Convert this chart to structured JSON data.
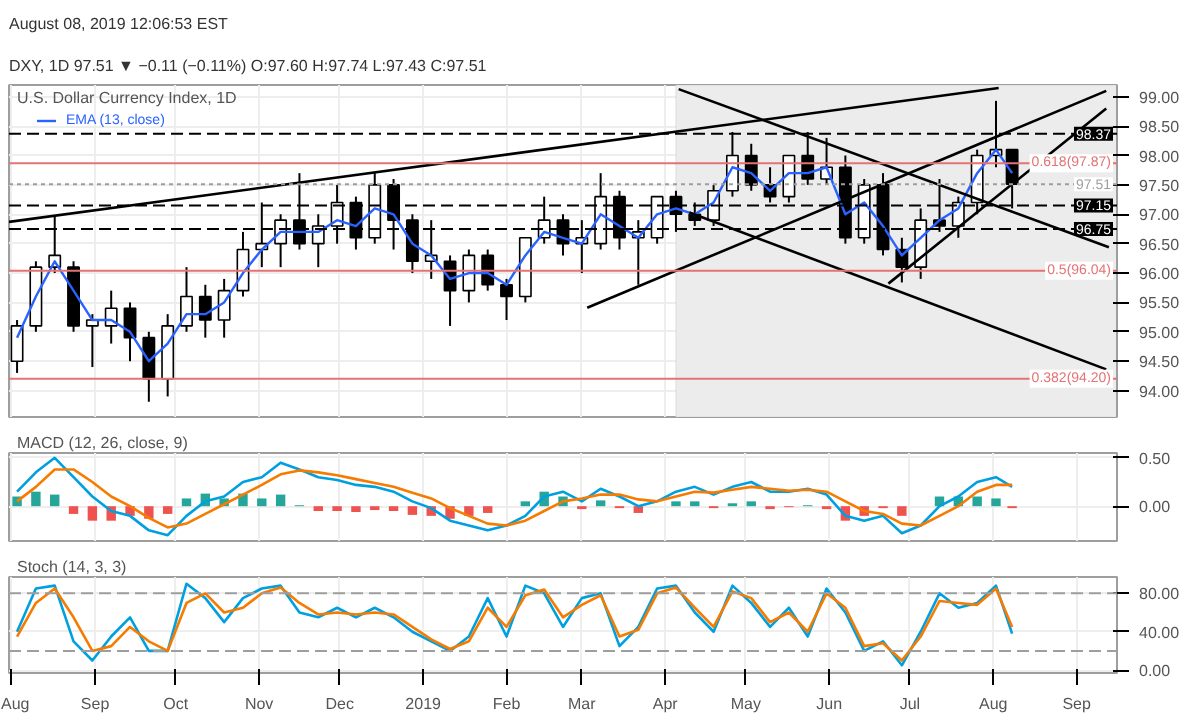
{
  "chart_data": [
    {
      "type": "candlestick",
      "title": "U.S. Dollar Currency Index, 1D",
      "annotations": [
        "August 08, 2019 12:06:53 EST",
        "DXY, 1D 97.51 ▼ −0.11 (−0.11%) O:97.60 H:97.74 L:97.43 C:97.51"
      ],
      "x": [
        "2018-08-03",
        "2018-08-10",
        "2018-08-17",
        "2018-08-24",
        "2018-08-31",
        "2018-09-07",
        "2018-09-14",
        "2018-09-21",
        "2018-09-28",
        "2018-10-05",
        "2018-10-12",
        "2018-10-19",
        "2018-10-26",
        "2018-11-02",
        "2018-11-09",
        "2018-11-16",
        "2018-11-23",
        "2018-11-30",
        "2018-12-07",
        "2018-12-14",
        "2018-12-21",
        "2018-12-28",
        "2019-01-04",
        "2019-01-11",
        "2019-01-18",
        "2019-01-25",
        "2019-02-01",
        "2019-02-08",
        "2019-02-15",
        "2019-02-22",
        "2019-03-01",
        "2019-03-08",
        "2019-03-15",
        "2019-03-22",
        "2019-03-29",
        "2019-04-05",
        "2019-04-12",
        "2019-04-19",
        "2019-04-26",
        "2019-05-03",
        "2019-05-10",
        "2019-05-17",
        "2019-05-24",
        "2019-05-31",
        "2019-06-07",
        "2019-06-14",
        "2019-06-21",
        "2019-06-28",
        "2019-07-05",
        "2019-07-12",
        "2019-07-19",
        "2019-07-26",
        "2019-08-02",
        "2019-08-08"
      ],
      "ohlc": [
        [
          94.5,
          95.2,
          94.3,
          95.1
        ],
        [
          95.1,
          96.2,
          95.0,
          96.1
        ],
        [
          96.1,
          96.98,
          96.0,
          96.3
        ],
        [
          96.1,
          96.2,
          95.0,
          95.1
        ],
        [
          95.1,
          95.3,
          94.4,
          95.2
        ],
        [
          95.1,
          95.7,
          94.8,
          95.4
        ],
        [
          95.4,
          95.5,
          94.5,
          94.9
        ],
        [
          94.9,
          95.0,
          93.81,
          94.2
        ],
        [
          94.2,
          95.3,
          93.9,
          95.1
        ],
        [
          95.1,
          96.1,
          95.0,
          95.6
        ],
        [
          95.6,
          95.8,
          94.9,
          95.2
        ],
        [
          95.2,
          95.9,
          94.9,
          95.7
        ],
        [
          95.7,
          96.7,
          95.6,
          96.4
        ],
        [
          96.4,
          97.2,
          96.1,
          96.5
        ],
        [
          96.5,
          97.0,
          96.1,
          96.9
        ],
        [
          96.9,
          97.7,
          96.4,
          96.5
        ],
        [
          96.5,
          97.0,
          96.1,
          96.8
        ],
        [
          96.8,
          97.5,
          96.5,
          97.2
        ],
        [
          97.2,
          97.3,
          96.4,
          96.6
        ],
        [
          96.6,
          97.7,
          96.5,
          97.5
        ],
        [
          97.5,
          97.6,
          96.4,
          96.9
        ],
        [
          96.9,
          97.0,
          96.0,
          96.2
        ],
        [
          96.2,
          96.9,
          95.9,
          96.3
        ],
        [
          96.2,
          96.3,
          95.1,
          95.7
        ],
        [
          95.7,
          96.4,
          95.5,
          96.3
        ],
        [
          96.3,
          96.4,
          95.7,
          95.8
        ],
        [
          95.8,
          95.9,
          95.2,
          95.6
        ],
        [
          95.6,
          96.6,
          95.5,
          96.6
        ],
        [
          96.6,
          97.3,
          96.5,
          96.9
        ],
        [
          96.9,
          97.0,
          96.3,
          96.5
        ],
        [
          96.5,
          96.9,
          96.0,
          96.6
        ],
        [
          96.5,
          97.7,
          96.4,
          97.3
        ],
        [
          97.3,
          97.4,
          96.4,
          96.6
        ],
        [
          96.6,
          96.9,
          95.8,
          96.7
        ],
        [
          96.6,
          97.3,
          96.5,
          97.3
        ],
        [
          97.3,
          97.4,
          96.7,
          97.0
        ],
        [
          97.0,
          97.2,
          96.8,
          96.9
        ],
        [
          96.9,
          97.5,
          96.8,
          97.4
        ],
        [
          97.4,
          98.4,
          97.3,
          98.0
        ],
        [
          98.0,
          98.2,
          97.4,
          97.5
        ],
        [
          97.5,
          97.8,
          97.2,
          97.3
        ],
        [
          97.3,
          98.0,
          97.2,
          98.0
        ],
        [
          98.0,
          98.4,
          97.5,
          97.6
        ],
        [
          97.6,
          98.3,
          97.5,
          97.8
        ],
        [
          97.8,
          98.0,
          96.5,
          96.6
        ],
        [
          96.6,
          97.6,
          96.5,
          97.5
        ],
        [
          97.5,
          97.7,
          96.3,
          96.4
        ],
        [
          96.4,
          96.6,
          95.84,
          96.1
        ],
        [
          96.1,
          97.1,
          95.9,
          96.9
        ],
        [
          96.9,
          97.6,
          96.7,
          96.8
        ],
        [
          96.8,
          97.3,
          96.6,
          97.2
        ],
        [
          97.2,
          98.1,
          97.0,
          98.0
        ],
        [
          98.0,
          98.93,
          97.8,
          98.1
        ],
        [
          98.1,
          98.1,
          97.1,
          97.51
        ]
      ],
      "color": "#000000",
      "colors": [
        "#ffffff",
        "#ffffff",
        "#ffffff",
        "#000000",
        "#ffffff",
        "#ffffff",
        "#000000",
        "#000000",
        "#ffffff",
        "#ffffff",
        "#000000",
        "#ffffff",
        "#ffffff",
        "#ffffff",
        "#ffffff",
        "#000000",
        "#ffffff",
        "#ffffff",
        "#000000",
        "#ffffff",
        "#000000",
        "#000000",
        "#ffffff",
        "#000000",
        "#ffffff",
        "#000000",
        "#000000",
        "#ffffff",
        "#ffffff",
        "#000000",
        "#ffffff",
        "#ffffff",
        "#000000",
        "#ffffff",
        "#ffffff",
        "#000000",
        "#000000",
        "#ffffff",
        "#ffffff",
        "#000000",
        "#000000",
        "#ffffff",
        "#000000",
        "#ffffff",
        "#000000",
        "#ffffff",
        "#000000",
        "#000000",
        "#ffffff",
        "#000000",
        "#ffffff",
        "#ffffff",
        "#ffffff",
        "#000000"
      ],
      "series": [
        {
          "type": "line",
          "name": "EMA (13, close)",
          "color": "#2962ff",
          "values": [
            94.9,
            95.6,
            96.2,
            95.7,
            95.2,
            95.2,
            95.0,
            94.5,
            94.8,
            95.3,
            95.3,
            95.5,
            96.0,
            96.4,
            96.7,
            96.7,
            96.7,
            96.9,
            96.8,
            97.1,
            97.0,
            96.5,
            96.3,
            95.9,
            96.0,
            96.0,
            95.8,
            96.3,
            96.7,
            96.6,
            96.5,
            97.0,
            96.8,
            96.6,
            97.0,
            97.1,
            97.0,
            97.2,
            97.8,
            97.7,
            97.4,
            97.7,
            97.7,
            97.8,
            97.0,
            97.2,
            96.8,
            96.3,
            96.6,
            96.9,
            97.1,
            97.7,
            98.1,
            97.7
          ]
        },
        {
          "type": "line",
          "color": "#000000",
          "x": [
            "2018-07-31",
            "2019-08-03"
          ],
          "values": [
            96.87,
            99.15
          ]
        },
        {
          "type": "line",
          "color": "#000000",
          "x": [
            "2019-03-03",
            "2019-09-12"
          ],
          "values": [
            95.41,
            99.1
          ]
        },
        {
          "type": "line",
          "color": "#000000",
          "x": [
            "2019-04-06",
            "2019-09-13"
          ],
          "values": [
            99.13,
            96.44
          ]
        },
        {
          "type": "line",
          "color": "#000000",
          "x": [
            "2019-04-10",
            "2019-09-12"
          ],
          "values": [
            97.03,
            94.36
          ]
        },
        {
          "type": "line",
          "color": "#000000",
          "x": [
            "2019-06-23",
            "2019-09-12"
          ],
          "values": [
            95.82,
            98.8
          ]
        }
      ],
      "ref_lines": [
        {
          "axis": "y",
          "value": 98.37,
          "label": "98.37",
          "color": "#000000",
          "line_style": "dashed"
        },
        {
          "axis": "y",
          "value": 97.87,
          "label": "0.618(97.87)",
          "color": "#e57373",
          "line_style": "solid"
        },
        {
          "axis": "y",
          "value": 97.51,
          "label": "97.51",
          "color": "#9e9e9e",
          "line_style": "dotted"
        },
        {
          "axis": "y",
          "value": 97.15,
          "label": "97.15",
          "color": "#000000",
          "line_style": "dashed"
        },
        {
          "axis": "y",
          "value": 96.75,
          "label": "96.75",
          "color": "#000000",
          "line_style": "dashed"
        },
        {
          "axis": "y",
          "value": 96.04,
          "label": "0.5(96.04)",
          "color": "#e57373",
          "line_style": "solid"
        },
        {
          "axis": "y",
          "value": 94.2,
          "label": "0.382(94.20)",
          "color": "#e57373",
          "line_style": "solid"
        }
      ],
      "bands": [
        {
          "axis": "x",
          "from": "2019-04-05",
          "to": "2019-09-16",
          "color": "#ececec"
        }
      ],
      "xlim": [
        "2018-07-31",
        "2019-09-16"
      ],
      "xticks": [
        {
          "value": "2018-08-01",
          "label": null
        },
        {
          "value": "2018-09-01",
          "label": null
        },
        {
          "value": "2018-10-01",
          "label": null
        },
        {
          "value": "2018-11-01",
          "label": null
        },
        {
          "value": "2018-12-01",
          "label": null
        },
        {
          "value": "2019-01-01",
          "label": null
        },
        {
          "value": "2019-02-01",
          "label": null
        },
        {
          "value": "2019-03-01",
          "label": null
        },
        {
          "value": "2019-04-01",
          "label": null
        },
        {
          "value": "2019-05-01",
          "label": null
        },
        {
          "value": "2019-06-01",
          "label": null
        },
        {
          "value": "2019-07-01",
          "label": null
        },
        {
          "value": "2019-08-01",
          "label": null
        },
        {
          "value": "2019-09-01",
          "label": null
        }
      ],
      "ylim": [
        93.55,
        99.2
      ],
      "yticks": [
        {
          "value": 94,
          "label": "94.00"
        },
        {
          "value": 94.5,
          "label": "94.50"
        },
        {
          "value": 95,
          "label": "95.00"
        },
        {
          "value": 95.5,
          "label": "95.50"
        },
        {
          "value": 96,
          "label": "96.00"
        },
        {
          "value": 96.5,
          "label": "96.50"
        },
        {
          "value": 97,
          "label": "97.00"
        },
        {
          "value": 97.5,
          "label": "97.50"
        },
        {
          "value": 98,
          "label": "98.00"
        },
        {
          "value": 98.5,
          "label": "98.50"
        },
        {
          "value": 99,
          "label": "99.00"
        }
      ],
      "grid": true,
      "legend": "top left",
      "tick_labels": "y"
    },
    {
      "type": "line",
      "title": "MACD (12, 26, close, 9)",
      "x": [
        "2018-08-03",
        "2018-08-10",
        "2018-08-17",
        "2018-08-24",
        "2018-08-31",
        "2018-09-07",
        "2018-09-14",
        "2018-09-21",
        "2018-09-28",
        "2018-10-05",
        "2018-10-12",
        "2018-10-19",
        "2018-10-26",
        "2018-11-02",
        "2018-11-09",
        "2018-11-16",
        "2018-11-23",
        "2018-11-30",
        "2018-12-07",
        "2018-12-14",
        "2018-12-21",
        "2018-12-28",
        "2019-01-04",
        "2019-01-11",
        "2019-01-18",
        "2019-01-25",
        "2019-02-01",
        "2019-02-08",
        "2019-02-15",
        "2019-02-22",
        "2019-03-01",
        "2019-03-08",
        "2019-03-15",
        "2019-03-22",
        "2019-03-29",
        "2019-04-05",
        "2019-04-12",
        "2019-04-19",
        "2019-04-26",
        "2019-05-03",
        "2019-05-10",
        "2019-05-17",
        "2019-05-24",
        "2019-05-31",
        "2019-06-07",
        "2019-06-14",
        "2019-06-21",
        "2019-06-28",
        "2019-07-05",
        "2019-07-12",
        "2019-07-19",
        "2019-07-26",
        "2019-08-02",
        "2019-08-08"
      ],
      "series": [
        {
          "type": "bar",
          "values": [
            0.1,
            0.15,
            0.12,
            -0.08,
            -0.15,
            -0.15,
            -0.1,
            -0.13,
            -0.08,
            0.08,
            0.13,
            0.08,
            0.13,
            0.08,
            0.12,
            0.01,
            -0.05,
            -0.05,
            -0.06,
            -0.04,
            -0.05,
            -0.09,
            -0.1,
            -0.13,
            -0.1,
            -0.07,
            0.0,
            0.05,
            0.15,
            0.1,
            -0.03,
            0.06,
            -0.02,
            -0.07,
            0.0,
            0.05,
            0.05,
            -0.02,
            0.03,
            0.05,
            -0.03,
            -0.01,
            0.01,
            -0.03,
            -0.15,
            -0.1,
            -0.02,
            -0.1,
            0.0,
            0.1,
            0.1,
            0.1,
            0.08,
            -0.02
          ],
          "colors": [
            "#26a69a",
            "#26a69a",
            "#26a69a",
            "#ef5350",
            "#ef5350",
            "#ef5350",
            "#ef5350",
            "#ef5350",
            "#ef5350",
            "#26a69a",
            "#26a69a",
            "#26a69a",
            "#26a69a",
            "#26a69a",
            "#26a69a",
            "#26a69a",
            "#ef5350",
            "#ef5350",
            "#ef5350",
            "#ef5350",
            "#ef5350",
            "#ef5350",
            "#ef5350",
            "#ef5350",
            "#ef5350",
            "#ef5350",
            "#26a69a",
            "#26a69a",
            "#26a69a",
            "#26a69a",
            "#ef5350",
            "#26a69a",
            "#ef5350",
            "#ef5350",
            "#26a69a",
            "#26a69a",
            "#26a69a",
            "#ef5350",
            "#26a69a",
            "#26a69a",
            "#ef5350",
            "#ef5350",
            "#26a69a",
            "#ef5350",
            "#ef5350",
            "#ef5350",
            "#ef5350",
            "#ef5350",
            "#26a69a",
            "#26a69a",
            "#26a69a",
            "#26a69a",
            "#26a69a",
            "#ef5350"
          ]
        },
        {
          "type": "line",
          "color": "#00a0e0",
          "values": [
            0.15,
            0.35,
            0.5,
            0.3,
            0.1,
            -0.05,
            -0.1,
            -0.25,
            -0.3,
            -0.1,
            0.05,
            0.1,
            0.25,
            0.3,
            0.45,
            0.38,
            0.3,
            0.27,
            0.22,
            0.2,
            0.15,
            0.05,
            -0.02,
            -0.15,
            -0.2,
            -0.25,
            -0.2,
            -0.1,
            0.1,
            0.15,
            0.05,
            0.18,
            0.1,
            0.0,
            0.05,
            0.15,
            0.2,
            0.12,
            0.2,
            0.25,
            0.15,
            0.15,
            0.18,
            0.12,
            -0.1,
            -0.15,
            -0.1,
            -0.28,
            -0.2,
            0.0,
            0.1,
            0.25,
            0.3,
            0.2
          ]
        },
        {
          "type": "line",
          "color": "#f57c00",
          "values": [
            0.05,
            0.2,
            0.38,
            0.38,
            0.25,
            0.1,
            0.0,
            -0.12,
            -0.22,
            -0.18,
            -0.08,
            0.02,
            0.12,
            0.22,
            0.33,
            0.37,
            0.35,
            0.32,
            0.28,
            0.24,
            0.2,
            0.14,
            0.08,
            -0.02,
            -0.1,
            -0.18,
            -0.2,
            -0.15,
            -0.05,
            0.05,
            0.08,
            0.12,
            0.12,
            0.07,
            0.05,
            0.1,
            0.15,
            0.14,
            0.17,
            0.2,
            0.18,
            0.16,
            0.17,
            0.15,
            0.05,
            -0.05,
            -0.08,
            -0.18,
            -0.2,
            -0.1,
            0.0,
            0.15,
            0.22,
            0.22
          ]
        }
      ],
      "xlim": [
        "2018-07-31",
        "2019-09-16"
      ],
      "xticks": [
        {
          "value": "2018-08-01",
          "label": null
        },
        {
          "value": "2018-09-01",
          "label": null
        },
        {
          "value": "2018-10-01",
          "label": null
        },
        {
          "value": "2018-11-01",
          "label": null
        },
        {
          "value": "2018-12-01",
          "label": null
        },
        {
          "value": "2019-01-01",
          "label": null
        },
        {
          "value": "2019-02-01",
          "label": null
        },
        {
          "value": "2019-03-01",
          "label": null
        },
        {
          "value": "2019-04-01",
          "label": null
        },
        {
          "value": "2019-05-01",
          "label": null
        },
        {
          "value": "2019-06-01",
          "label": null
        },
        {
          "value": "2019-07-01",
          "label": null
        },
        {
          "value": "2019-08-01",
          "label": null
        },
        {
          "value": "2019-09-01",
          "label": null
        }
      ],
      "ylim": [
        -0.36,
        0.55
      ],
      "yticks": [
        {
          "value": 0,
          "label": "0.00"
        },
        {
          "value": 0.5,
          "label": "0.50"
        }
      ],
      "grid": true,
      "tick_labels": "y"
    },
    {
      "type": "line",
      "title": "Stoch (14, 3, 3)",
      "x": [
        "2018-08-03",
        "2018-08-10",
        "2018-08-17",
        "2018-08-24",
        "2018-08-31",
        "2018-09-07",
        "2018-09-14",
        "2018-09-21",
        "2018-09-28",
        "2018-10-05",
        "2018-10-12",
        "2018-10-19",
        "2018-10-26",
        "2018-11-02",
        "2018-11-09",
        "2018-11-16",
        "2018-11-23",
        "2018-11-30",
        "2018-12-07",
        "2018-12-14",
        "2018-12-21",
        "2018-12-28",
        "2019-01-04",
        "2019-01-11",
        "2019-01-18",
        "2019-01-25",
        "2019-02-01",
        "2019-02-08",
        "2019-02-15",
        "2019-02-22",
        "2019-03-01",
        "2019-03-08",
        "2019-03-15",
        "2019-03-22",
        "2019-03-29",
        "2019-04-05",
        "2019-04-12",
        "2019-04-19",
        "2019-04-26",
        "2019-05-03",
        "2019-05-10",
        "2019-05-17",
        "2019-05-24",
        "2019-05-31",
        "2019-06-07",
        "2019-06-14",
        "2019-06-21",
        "2019-06-28",
        "2019-07-05",
        "2019-07-12",
        "2019-07-19",
        "2019-07-26",
        "2019-08-02",
        "2019-08-08"
      ],
      "series": [
        {
          "type": "line",
          "color": "#00a0e0",
          "values": [
            40,
            85,
            88,
            30,
            10,
            35,
            55,
            20,
            20,
            90,
            75,
            50,
            75,
            85,
            88,
            60,
            55,
            65,
            55,
            65,
            55,
            40,
            30,
            20,
            35,
            75,
            35,
            88,
            80,
            45,
            75,
            80,
            25,
            45,
            85,
            88,
            60,
            40,
            88,
            70,
            45,
            65,
            35,
            85,
            60,
            20,
            30,
            5,
            40,
            80,
            65,
            70,
            88,
            38
          ]
        },
        {
          "type": "line",
          "color": "#f57c00",
          "values": [
            35,
            70,
            85,
            55,
            20,
            25,
            45,
            30,
            20,
            70,
            80,
            60,
            65,
            80,
            86,
            70,
            58,
            60,
            58,
            60,
            58,
            45,
            32,
            22,
            30,
            65,
            45,
            78,
            84,
            55,
            68,
            78,
            35,
            42,
            80,
            86,
            65,
            45,
            82,
            75,
            50,
            60,
            40,
            80,
            65,
            25,
            28,
            10,
            35,
            72,
            70,
            68,
            85,
            45
          ]
        }
      ],
      "ref_lines": [
        {
          "axis": "y",
          "value": 80,
          "color": "#9e9e9e",
          "line_style": "dashed"
        },
        {
          "axis": "y",
          "value": 20,
          "color": "#9e9e9e",
          "line_style": "dashed"
        }
      ],
      "xlim": [
        "2018-07-31",
        "2019-09-16"
      ],
      "xticks": [
        {
          "value": "2018-08-01",
          "label": "Aug"
        },
        {
          "value": "2018-09-01",
          "label": "Sep"
        },
        {
          "value": "2018-10-01",
          "label": "Oct"
        },
        {
          "value": "2018-11-01",
          "label": "Nov"
        },
        {
          "value": "2018-12-01",
          "label": "Dec"
        },
        {
          "value": "2019-01-01",
          "label": "2019"
        },
        {
          "value": "2019-02-01",
          "label": "Feb"
        },
        {
          "value": "2019-03-01",
          "label": "Mar"
        },
        {
          "value": "2019-04-01",
          "label": "Apr"
        },
        {
          "value": "2019-05-01",
          "label": "May"
        },
        {
          "value": "2019-06-01",
          "label": "Jun"
        },
        {
          "value": "2019-07-01",
          "label": "Jul"
        },
        {
          "value": "2019-08-01",
          "label": "Aug"
        },
        {
          "value": "2019-09-01",
          "label": "Sep"
        }
      ],
      "ylim": [
        -3,
        97
      ],
      "yticks": [
        {
          "value": 0,
          "label": "0.00"
        },
        {
          "value": 40,
          "label": "40.00"
        },
        {
          "value": 80,
          "label": "80.00"
        }
      ],
      "grid": true
    }
  ]
}
